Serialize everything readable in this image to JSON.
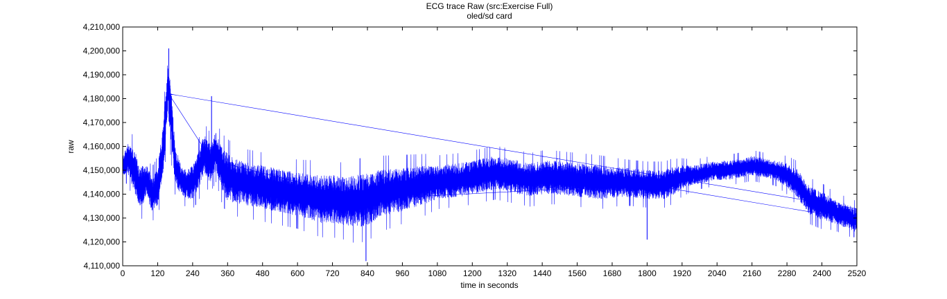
{
  "chart_data": {
    "type": "line",
    "title": "ECG trace Raw (src:Exercise Full)",
    "subtitle": "oled/sd card",
    "xlabel": "time in seconds",
    "ylabel": "raw",
    "xlim": [
      0,
      2520
    ],
    "ylim": [
      4110000,
      4210000
    ],
    "x_ticks": [
      0,
      120,
      240,
      360,
      480,
      600,
      720,
      840,
      960,
      1080,
      1200,
      1320,
      1440,
      1560,
      1680,
      1800,
      1920,
      2040,
      2160,
      2280,
      2400,
      2520
    ],
    "y_ticks": [
      4110000,
      4120000,
      4130000,
      4140000,
      4150000,
      4160000,
      4170000,
      4180000,
      4190000,
      4200000,
      4210000
    ],
    "y_tick_labels": [
      "4,110,000",
      "4,120,000",
      "4,130,000",
      "4,140,000",
      "4,150,000",
      "4,160,000",
      "4,170,000",
      "4,180,000",
      "4,190,000",
      "4,200,000",
      "4,210,000"
    ],
    "grid": false,
    "legend": "none",
    "line_color": "#0000ff",
    "series": [
      {
        "envelope_x": [
          0,
          20,
          40,
          60,
          80,
          100,
          120,
          140,
          155,
          165,
          180,
          200,
          220,
          240,
          260,
          280,
          300,
          320,
          340,
          360,
          400,
          480,
          560,
          600,
          680,
          720,
          760,
          800,
          840,
          880,
          960,
          1040,
          1080,
          1160,
          1200,
          1240,
          1280,
          1320,
          1360,
          1400,
          1440,
          1480,
          1560,
          1640,
          1720,
          1800,
          1860,
          1880,
          1920,
          1960,
          2000,
          2040,
          2080,
          2120,
          2160,
          2200,
          2240,
          2280,
          2320,
          2340,
          2360,
          2400,
          2440,
          2480,
          2500,
          2520
        ],
        "center": [
          4152000,
          4155000,
          4150000,
          4142000,
          4146000,
          4140000,
          4143000,
          4160000,
          4185000,
          4175000,
          4152000,
          4146000,
          4144000,
          4145000,
          4150000,
          4157000,
          4153000,
          4158000,
          4151000,
          4147000,
          4145000,
          4143000,
          4141000,
          4140000,
          4138000,
          4138000,
          4137000,
          4137000,
          4138000,
          4140000,
          4142000,
          4144000,
          4145000,
          4146000,
          4147000,
          4148000,
          4149000,
          4148000,
          4147000,
          4146000,
          4147000,
          4147000,
          4146000,
          4145000,
          4145000,
          4144000,
          4144000,
          4145000,
          4147000,
          4148000,
          4149000,
          4150000,
          4150000,
          4151000,
          4152000,
          4151000,
          4150000,
          4148000,
          4144000,
          4140000,
          4137000,
          4135000,
          4133000,
          4131000,
          4130000,
          4129000
        ],
        "half_range": [
          4000,
          7000,
          9000,
          9000,
          7000,
          7000,
          8000,
          10000,
          12000,
          12000,
          8000,
          6000,
          6000,
          7000,
          8000,
          8000,
          8000,
          8000,
          9000,
          10000,
          9000,
          9000,
          9000,
          9000,
          10000,
          10000,
          10000,
          11000,
          11000,
          10000,
          9000,
          8000,
          7000,
          7000,
          7000,
          7000,
          7000,
          7000,
          7000,
          7000,
          7000,
          7000,
          7000,
          7000,
          6000,
          6000,
          6000,
          6000,
          5000,
          4000,
          4000,
          4000,
          4000,
          4000,
          4000,
          4000,
          4000,
          5000,
          6000,
          6000,
          6000,
          6000,
          5000,
          5000,
          5000,
          5000
        ]
      }
    ],
    "notable_extremes": [
      {
        "x": 158,
        "y": 4201000
      },
      {
        "x": 305,
        "y": 4181000
      },
      {
        "x": 835,
        "y": 4112000
      },
      {
        "x": 1800,
        "y": 4121000
      },
      {
        "x": 2510,
        "y": 4122000
      }
    ]
  }
}
